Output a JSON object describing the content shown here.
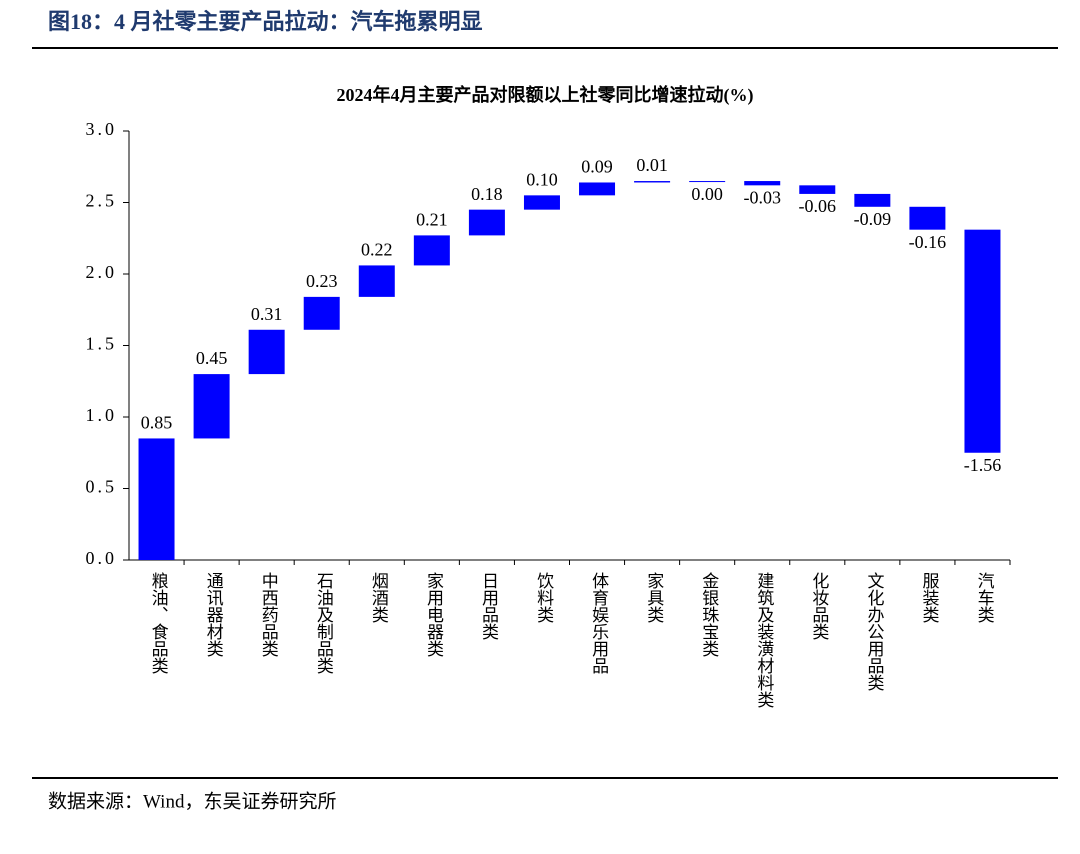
{
  "header": {
    "title": "图18：4 月社零主要产品拉动：汽车拖累明显"
  },
  "chart_data": {
    "type": "waterfall",
    "title": "2024年4月主要产品对限额以上社零同比增速拉动(%)",
    "categories": [
      "粮油、食品类",
      "通讯器材类",
      "中西药品类",
      "石油及制品类",
      "烟酒类",
      "家用电器类",
      "日用品类",
      "饮料类",
      "体育娱乐用品",
      "家具类",
      "金银珠宝类",
      "建筑及装潢材料类",
      "化妆品类",
      "文化办公用品类",
      "服装类",
      "汽车类"
    ],
    "values": [
      0.85,
      0.45,
      0.31,
      0.23,
      0.22,
      0.21,
      0.18,
      0.1,
      0.09,
      0.01,
      0.0,
      -0.03,
      -0.06,
      -0.09,
      -0.16,
      -1.56
    ],
    "value_labels": [
      "0.85",
      "0.45",
      "0.31",
      "0.23",
      "0.22",
      "0.21",
      "0.18",
      "0.10",
      "0.09",
      "0.01",
      "0.00",
      "-0.03",
      "-0.06",
      "-0.09",
      "-0.16",
      "-1.56"
    ],
    "color": "#0000ff",
    "ylim": [
      0,
      3
    ],
    "yticks": [
      {
        "value": 0,
        "label": "0.0"
      },
      {
        "value": 0.5,
        "label": "0.5"
      },
      {
        "value": 1,
        "label": "1.0"
      },
      {
        "value": 1.5,
        "label": "1.5"
      },
      {
        "value": 2,
        "label": "2.0"
      },
      {
        "value": 2.5,
        "label": "2.5"
      },
      {
        "value": 3,
        "label": "3.0"
      }
    ],
    "grid": false
  },
  "source": "数据来源：Wind，东吴证券研究所"
}
